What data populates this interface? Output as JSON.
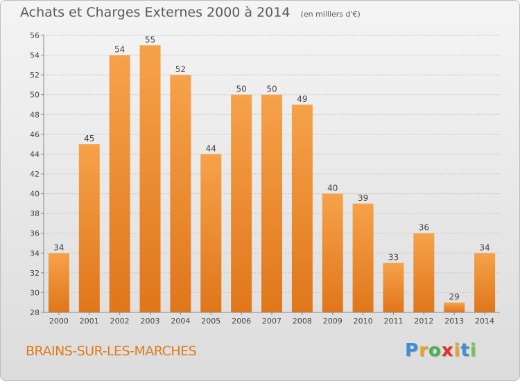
{
  "chart_data": {
    "type": "bar",
    "title": "Achats et Charges Externes 2000 à 2014",
    "subtitle": "(en milliers d'€)",
    "categories": [
      "2000",
      "2001",
      "2002",
      "2003",
      "2004",
      "2005",
      "2006",
      "2007",
      "2008",
      "2009",
      "2010",
      "2011",
      "2012",
      "2013",
      "2014"
    ],
    "values": [
      34,
      45,
      54,
      55,
      52,
      44,
      50,
      50,
      49,
      40,
      39,
      33,
      36,
      29,
      34
    ],
    "ylim": [
      28,
      56
    ],
    "yticks": [
      28,
      30,
      32,
      34,
      36,
      38,
      40,
      42,
      44,
      46,
      48,
      50,
      52,
      54,
      56
    ],
    "xlabel": "",
    "ylabel": "",
    "grid": "horizontal dashed",
    "bar_color_top": "#f6a24a",
    "bar_color_bottom": "#e0761a"
  },
  "commune": "BRAINS-SUR-LES-MARCHES",
  "brand": {
    "letters": [
      "P",
      "r",
      "o",
      "x",
      "i",
      "t",
      "i"
    ],
    "colors": [
      "#3a8fd6",
      "#f0a020",
      "#4caf50",
      "#e03030",
      "#f0a020",
      "#3a8fd6",
      "#7cc04a"
    ]
  }
}
